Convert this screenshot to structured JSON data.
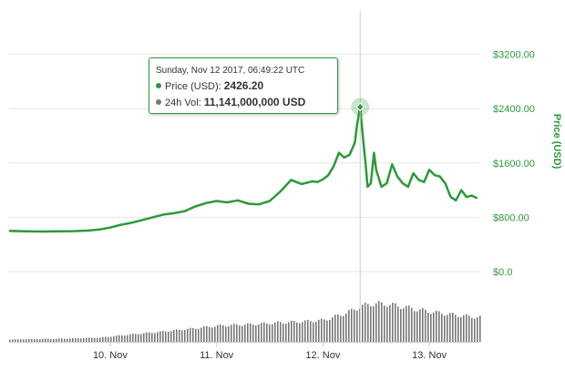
{
  "chart_data": {
    "type": "line",
    "ylabel": "Price (USD)",
    "yticks": [
      "$0.0",
      "$800.00",
      "$1600.00",
      "$2400.00",
      "$3200.00"
    ],
    "ytick_values": [
      0,
      800,
      1600,
      2400,
      3200
    ],
    "ylim": [
      0,
      4000
    ],
    "xtick_labels": [
      "10. Nov",
      "11. Nov",
      "12. Nov",
      "13. Nov"
    ],
    "xtick_values": [
      10,
      11,
      12,
      13
    ],
    "xlim": [
      9.05,
      13.47
    ],
    "grid": true,
    "colors": {
      "price": "#2b9a3a",
      "volume": "#777777",
      "crosshair": "#cccccc"
    },
    "series": [
      {
        "name": "Price (USD)",
        "x": [
          9.05,
          9.2,
          9.35,
          9.5,
          9.65,
          9.8,
          9.9,
          10.0,
          10.1,
          10.2,
          10.3,
          10.4,
          10.5,
          10.6,
          10.7,
          10.8,
          10.9,
          11.0,
          11.1,
          11.2,
          11.3,
          11.4,
          11.5,
          11.6,
          11.7,
          11.8,
          11.9,
          11.95,
          12.0,
          12.05,
          12.1,
          12.15,
          12.2,
          12.25,
          12.3,
          12.32,
          12.35,
          12.38,
          12.4,
          12.42,
          12.45,
          12.48,
          12.5,
          12.55,
          12.6,
          12.65,
          12.7,
          12.75,
          12.8,
          12.85,
          12.9,
          12.95,
          13.0,
          13.05,
          13.1,
          13.15,
          13.2,
          13.25,
          13.3,
          13.35,
          13.4,
          13.45
        ],
        "values": [
          600,
          595,
          590,
          593,
          596,
          605,
          620,
          650,
          690,
          720,
          760,
          800,
          840,
          860,
          890,
          960,
          1010,
          1040,
          1020,
          1050,
          1000,
          990,
          1040,
          1180,
          1350,
          1290,
          1330,
          1320,
          1360,
          1420,
          1550,
          1750,
          1680,
          1720,
          1900,
          2150,
          2426.2,
          1900,
          1600,
          1250,
          1300,
          1750,
          1500,
          1250,
          1300,
          1580,
          1400,
          1300,
          1250,
          1450,
          1350,
          1320,
          1500,
          1420,
          1400,
          1300,
          1100,
          1050,
          1200,
          1100,
          1120,
          1080
        ]
      },
      {
        "name": "24h Vol",
        "x": [
          9.05,
          9.3,
          9.6,
          9.9,
          10.2,
          10.5,
          10.8,
          11.0,
          11.2,
          11.4,
          11.6,
          11.8,
          12.0,
          12.2,
          12.35,
          12.45,
          12.6,
          12.8,
          13.0,
          13.2,
          13.45
        ],
        "values": [
          0.5,
          0.6,
          0.7,
          0.9,
          1.6,
          2.2,
          2.9,
          3.4,
          3.6,
          3.8,
          4.1,
          4.3,
          4.6,
          6.0,
          7.5,
          8.1,
          8.0,
          7.2,
          6.4,
          5.8,
          5.2
        ]
      }
    ]
  },
  "tooltip": {
    "date": "Sunday, Nov 12 2017, 06:49:22 UTC",
    "price_label": "Price (USD): ",
    "price_value": "2426.20",
    "vol_label": "24h Vol: ",
    "vol_value": "11,141,000,000 USD",
    "price_dot_color": "#2b9a3a",
    "vol_dot_color": "#777777"
  }
}
